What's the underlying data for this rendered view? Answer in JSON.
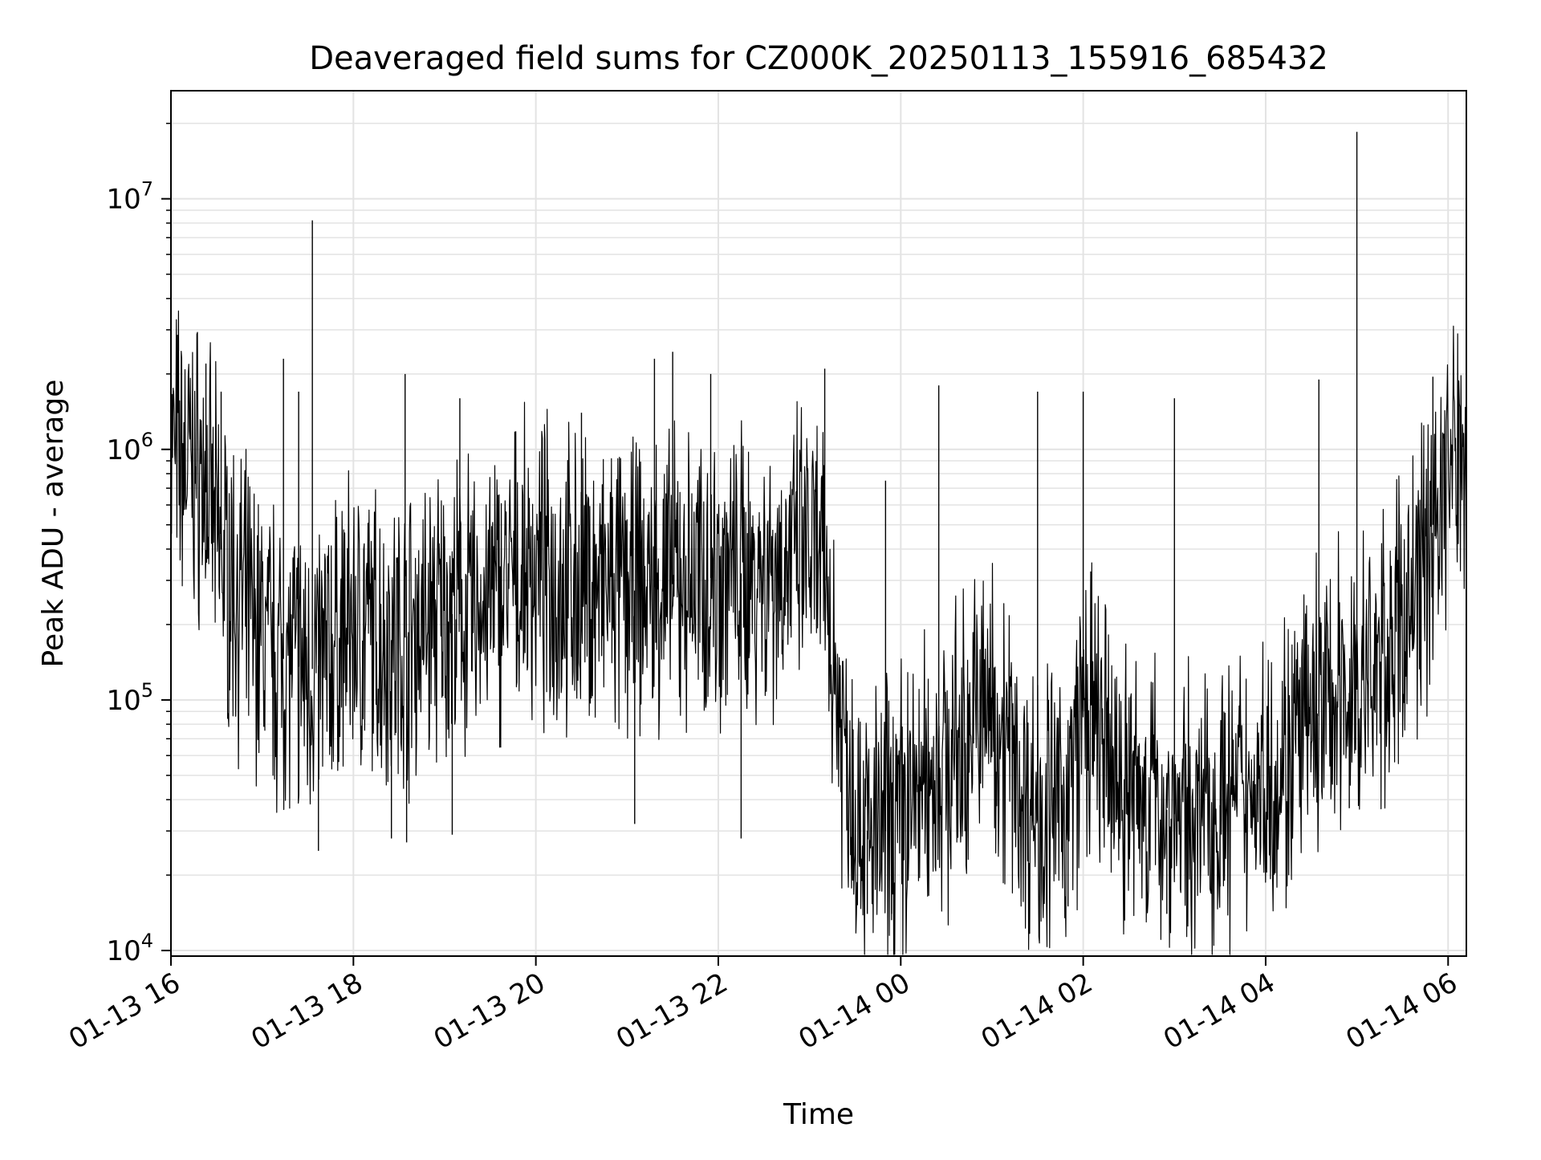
{
  "chart_data": {
    "type": "line",
    "title": "Deaveraged field sums for CZ000K_20250113_155916_685432",
    "xlabel": "Time",
    "ylabel": "Peak ADU - average",
    "yscale": "log",
    "ylim": [
      9500,
      27000000
    ],
    "xlim": [
      "2025-01-13 16:00",
      "2025-01-14 06:12"
    ],
    "grid": true,
    "line_color": "#000000",
    "x_ticks": [
      {
        "t": "2025-01-13 16:00",
        "label": "01-13 16"
      },
      {
        "t": "2025-01-13 18:00",
        "label": "01-13 18"
      },
      {
        "t": "2025-01-13 20:00",
        "label": "01-13 20"
      },
      {
        "t": "2025-01-13 22:00",
        "label": "01-13 22"
      },
      {
        "t": "2025-01-14 00:00",
        "label": "01-14 00"
      },
      {
        "t": "2025-01-14 02:00",
        "label": "01-14 02"
      },
      {
        "t": "2025-01-14 04:00",
        "label": "01-14 04"
      },
      {
        "t": "2025-01-14 06:00",
        "label": "01-14 06"
      }
    ],
    "y_ticks": [
      {
        "value": 10000,
        "base": "10",
        "exp": "4"
      },
      {
        "value": 100000,
        "base": "10",
        "exp": "5"
      },
      {
        "value": 1000000,
        "base": "10",
        "exp": "6"
      },
      {
        "value": 10000000,
        "base": "10",
        "exp": "7"
      }
    ],
    "series": [
      {
        "points": [
          [
            "2025-01-13 16:00",
            1000000
          ],
          [
            "2025-01-13 16:10",
            900000
          ],
          [
            "2025-01-13 16:20",
            800000
          ],
          [
            "2025-01-13 16:30",
            450000
          ],
          [
            "2025-01-13 16:40",
            300000
          ],
          [
            "2025-01-13 16:50",
            220000
          ],
          [
            "2025-01-13 17:00",
            180000
          ],
          [
            "2025-01-13 17:10",
            150000
          ],
          [
            "2025-01-13 17:20",
            140000
          ],
          [
            "2025-01-13 17:30",
            130000
          ],
          [
            "2025-01-13 17:40",
            140000
          ],
          [
            "2025-01-13 17:50",
            170000
          ],
          [
            "2025-01-13 18:00",
            200000
          ],
          [
            "2025-01-13 18:15",
            180000
          ],
          [
            "2025-01-13 18:30",
            170000
          ],
          [
            "2025-01-13 18:45",
            200000
          ],
          [
            "2025-01-13 19:00",
            220000
          ],
          [
            "2025-01-13 19:15",
            220000
          ],
          [
            "2025-01-13 19:30",
            250000
          ],
          [
            "2025-01-13 19:45",
            300000
          ],
          [
            "2025-01-13 20:00",
            320000
          ],
          [
            "2025-01-13 20:15",
            300000
          ],
          [
            "2025-01-13 20:30",
            280000
          ],
          [
            "2025-01-13 20:45",
            270000
          ],
          [
            "2025-01-13 21:00",
            270000
          ],
          [
            "2025-01-13 21:15",
            280000
          ],
          [
            "2025-01-13 21:30",
            290000
          ],
          [
            "2025-01-13 21:45",
            300000
          ],
          [
            "2025-01-13 22:00",
            310000
          ],
          [
            "2025-01-13 22:15",
            320000
          ],
          [
            "2025-01-13 22:30",
            330000
          ],
          [
            "2025-01-13 22:45",
            350000
          ],
          [
            "2025-01-13 23:00",
            380000
          ],
          [
            "2025-01-13 23:10",
            300000
          ],
          [
            "2025-01-13 23:20",
            90000
          ],
          [
            "2025-01-13 23:30",
            40000
          ],
          [
            "2025-01-13 23:40",
            28000
          ],
          [
            "2025-01-13 23:50",
            30000
          ],
          [
            "2025-01-14 00:00",
            35000
          ],
          [
            "2025-01-14 00:10",
            42000
          ],
          [
            "2025-01-14 00:20",
            50000
          ],
          [
            "2025-01-14 00:30",
            55000
          ],
          [
            "2025-01-14 00:40",
            62000
          ],
          [
            "2025-01-14 00:50",
            90000
          ],
          [
            "2025-01-14 01:00",
            95000
          ],
          [
            "2025-01-14 01:10",
            70000
          ],
          [
            "2025-01-14 01:20",
            40000
          ],
          [
            "2025-01-14 01:30",
            38000
          ],
          [
            "2025-01-14 01:40",
            35000
          ],
          [
            "2025-01-14 01:50",
            40000
          ],
          [
            "2025-01-14 02:00",
            90000
          ],
          [
            "2025-01-14 02:10",
            70000
          ],
          [
            "2025-01-14 02:20",
            50000
          ],
          [
            "2025-01-14 02:30",
            45000
          ],
          [
            "2025-01-14 02:40",
            40000
          ],
          [
            "2025-01-14 02:50",
            38000
          ],
          [
            "2025-01-14 03:00",
            35000
          ],
          [
            "2025-01-14 03:10",
            33000
          ],
          [
            "2025-01-14 03:20",
            35000
          ],
          [
            "2025-01-14 03:30",
            38000
          ],
          [
            "2025-01-14 03:40",
            40000
          ],
          [
            "2025-01-14 03:50",
            45000
          ],
          [
            "2025-01-14 04:00",
            50000
          ],
          [
            "2025-01-14 04:15",
            60000
          ],
          [
            "2025-01-14 04:30",
            80000
          ],
          [
            "2025-01-14 04:45",
            100000
          ],
          [
            "2025-01-14 05:00",
            110000
          ],
          [
            "2025-01-14 05:10",
            120000
          ],
          [
            "2025-01-14 05:20",
            150000
          ],
          [
            "2025-01-14 05:30",
            200000
          ],
          [
            "2025-01-14 05:40",
            300000
          ],
          [
            "2025-01-14 05:50",
            500000
          ],
          [
            "2025-01-14 06:00",
            800000
          ],
          [
            "2025-01-14 06:12",
            1100000
          ]
        ],
        "spikes": [
          [
            "2025-01-13 16:23",
            2200000
          ],
          [
            "2025-01-13 16:33",
            1700000
          ],
          [
            "2025-01-13 17:14",
            2300000
          ],
          [
            "2025-01-13 17:24",
            1700000
          ],
          [
            "2025-01-13 17:33",
            8200000
          ],
          [
            "2025-01-13 18:34",
            2000000
          ],
          [
            "2025-01-13 19:10",
            1600000
          ],
          [
            "2025-01-13 20:30",
            1400000
          ],
          [
            "2025-01-13 21:18",
            2300000
          ],
          [
            "2025-01-13 21:30",
            2450000
          ],
          [
            "2025-01-13 21:55",
            2000000
          ],
          [
            "2025-01-13 23:10",
            2100000
          ],
          [
            "2025-01-13 23:50",
            750000
          ],
          [
            "2025-01-14 00:25",
            1800000
          ],
          [
            "2025-01-14 01:30",
            1700000
          ],
          [
            "2025-01-14 02:00",
            1700000
          ],
          [
            "2025-01-14 03:00",
            1600000
          ],
          [
            "2025-01-14 04:35",
            1900000
          ],
          [
            "2025-01-14 05:00",
            18500000
          ],
          [
            "2025-01-14 05:50",
            1950000
          ]
        ],
        "dips": [
          [
            "2025-01-13 17:37",
            25000
          ],
          [
            "2025-01-13 18:25",
            28000
          ],
          [
            "2025-01-13 18:35",
            27000
          ],
          [
            "2025-01-13 19:05",
            29000
          ],
          [
            "2025-01-13 21:05",
            32000
          ],
          [
            "2025-01-13 22:15",
            28000
          ],
          [
            "2025-01-13 23:38",
            14000
          ],
          [
            "2025-01-13 23:54",
            14000
          ],
          [
            "2025-01-14 01:50",
            15000
          ],
          [
            "2025-01-14 02:55",
            14000
          ],
          [
            "2025-01-14 03:30",
            18000
          ],
          [
            "2025-01-14 04:55",
            37000
          ]
        ]
      }
    ]
  }
}
